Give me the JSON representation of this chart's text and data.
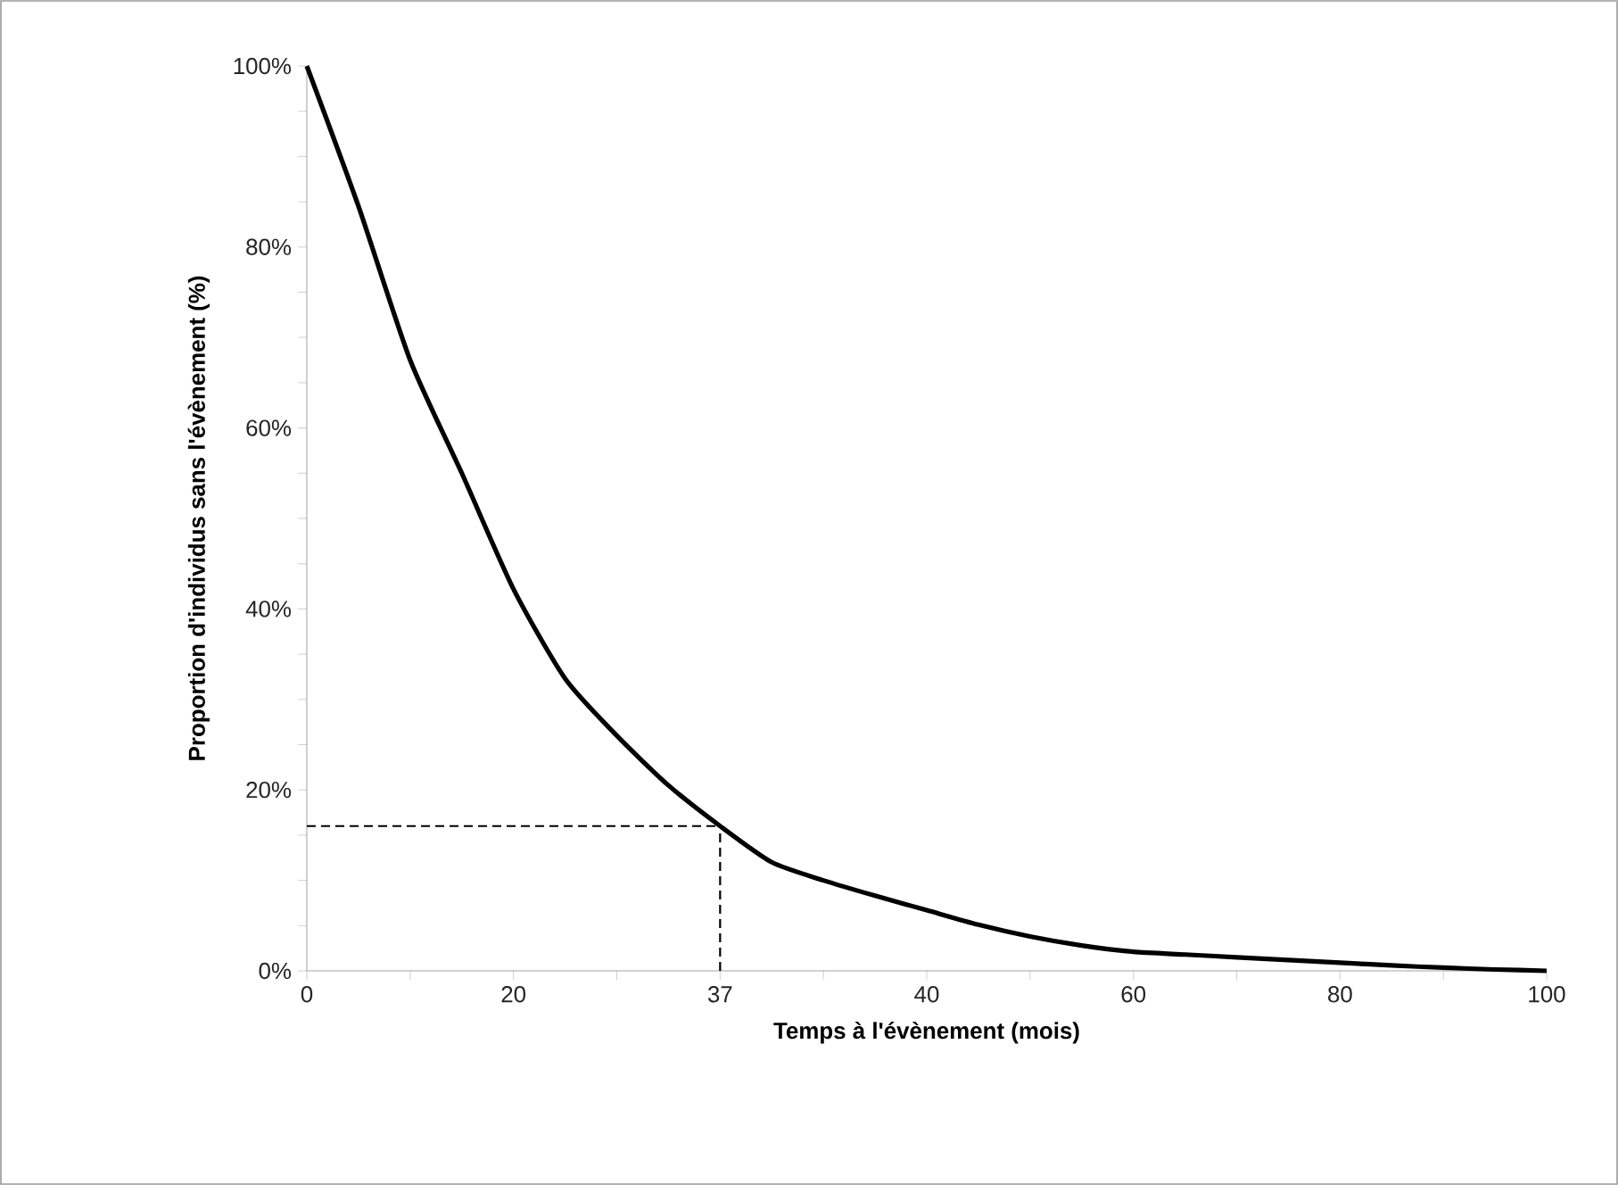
{
  "chart_data": {
    "type": "line",
    "xlabel": "Temps à l'évènement (mois)",
    "ylabel": "Proportion d'individus sans l'évènement (%)",
    "categories": [
      "0",
      null,
      null,
      null,
      "20",
      null,
      null,
      null,
      "37",
      null,
      null,
      null,
      "40",
      null,
      null,
      null,
      "60",
      null,
      null,
      null,
      "80",
      null,
      null,
      null,
      "100"
    ],
    "ylim": [
      0,
      100
    ],
    "yticks": [
      {
        "value": 0,
        "label": "0%"
      },
      {
        "value": 5,
        "label": null
      },
      {
        "value": 10,
        "label": null
      },
      {
        "value": 15,
        "label": null
      },
      {
        "value": 20,
        "label": "20%"
      },
      {
        "value": 25,
        "label": null
      },
      {
        "value": 30,
        "label": null
      },
      {
        "value": 35,
        "label": null
      },
      {
        "value": 40,
        "label": "40%"
      },
      {
        "value": 45,
        "label": null
      },
      {
        "value": 50,
        "label": null
      },
      {
        "value": 55,
        "label": null
      },
      {
        "value": 60,
        "label": "60%"
      },
      {
        "value": 65,
        "label": null
      },
      {
        "value": 70,
        "label": null
      },
      {
        "value": 75,
        "label": null
      },
      {
        "value": 80,
        "label": "80%"
      },
      {
        "value": 85,
        "label": null
      },
      {
        "value": 90,
        "label": null
      },
      {
        "value": 95,
        "label": null
      },
      {
        "value": 100,
        "label": "100%"
      }
    ],
    "grid": false,
    "marker": "none",
    "series": [
      {
        "color": "#000000",
        "values": [
          100,
          84.5,
          67.5,
          55,
          42.2,
          32.3,
          26,
          20.5,
          16,
          12,
          10,
          8.3,
          6.7,
          5.1,
          3.8,
          2.8,
          2.1,
          1.8,
          1.5,
          1.2,
          0.9,
          0.6,
          0.35,
          0.15,
          0
        ]
      }
    ],
    "ref_lines": [
      {
        "axis": "y",
        "value": 16,
        "color": "#000000",
        "line_style": "dashed"
      },
      {
        "axis": "x",
        "value": "37",
        "color": "#000000",
        "line_style": "dashed"
      }
    ]
  }
}
